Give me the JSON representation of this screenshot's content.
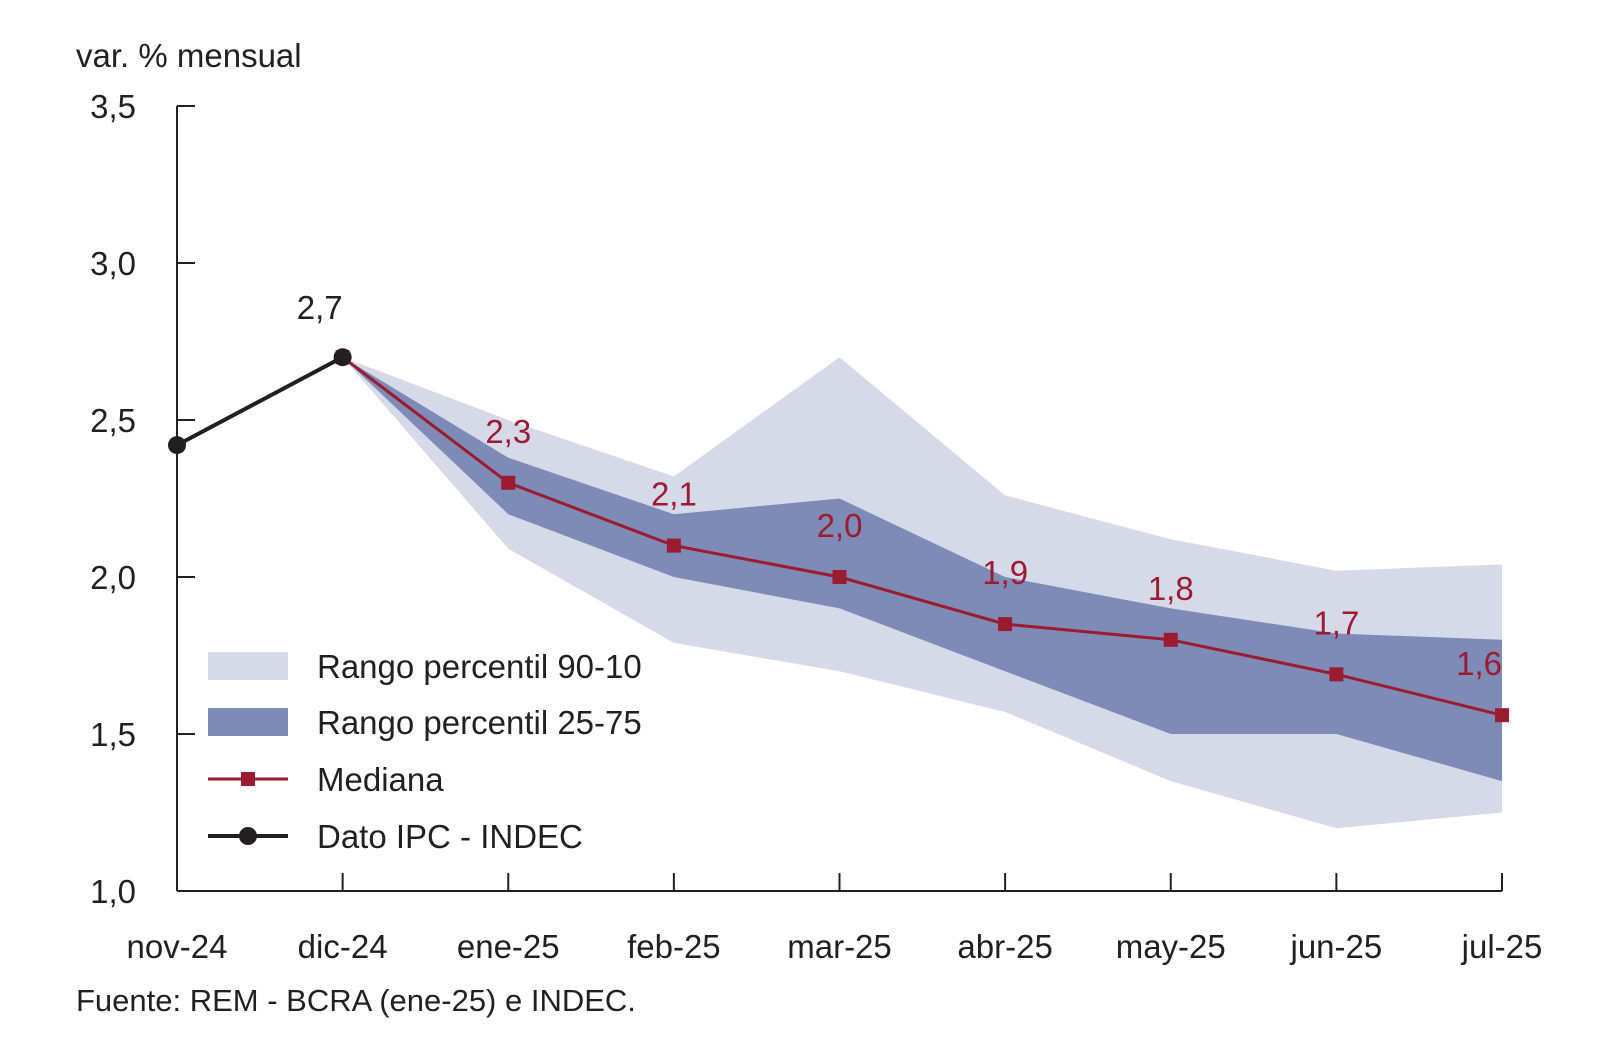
{
  "chart_data": {
    "type": "line",
    "ylabel": "var. % mensual",
    "source": "Fuente: REM - BCRA (ene-25) e INDEC.",
    "categories": [
      "nov-24",
      "dic-24",
      "ene-25",
      "feb-25",
      "mar-25",
      "abr-25",
      "may-25",
      "jun-25",
      "jul-25"
    ],
    "ylim": [
      1.0,
      3.5
    ],
    "yticks": [
      {
        "value": 1.0,
        "label": "1,0"
      },
      {
        "value": 1.5,
        "label": "1,5"
      },
      {
        "value": 2.0,
        "label": "2,0"
      },
      {
        "value": 2.5,
        "label": "2,5"
      },
      {
        "value": 3.0,
        "label": "3,0"
      },
      {
        "value": 3.5,
        "label": "3,5"
      }
    ],
    "grid": false,
    "legend_position": "bottom-left",
    "series": [
      {
        "name": "Rango percentil 90-10",
        "kind": "band",
        "color": "#d6d9e8",
        "x": [
          "dic-24",
          "ene-25",
          "feb-25",
          "mar-25",
          "abr-25",
          "may-25",
          "jun-25",
          "jul-25"
        ],
        "upper": [
          2.7,
          2.5,
          2.32,
          2.7,
          2.26,
          2.12,
          2.02,
          2.04
        ],
        "lower": [
          2.7,
          2.09,
          1.79,
          1.7,
          1.57,
          1.35,
          1.2,
          1.25
        ]
      },
      {
        "name": "Rango percentil 25-75",
        "kind": "band",
        "color": "#7d8bb6",
        "x": [
          "dic-24",
          "ene-25",
          "feb-25",
          "mar-25",
          "abr-25",
          "may-25",
          "jun-25",
          "jul-25"
        ],
        "upper": [
          2.7,
          2.38,
          2.2,
          2.25,
          2.0,
          1.9,
          1.82,
          1.8
        ],
        "lower": [
          2.7,
          2.2,
          2.0,
          1.9,
          1.7,
          1.5,
          1.5,
          1.35
        ]
      },
      {
        "name": "Mediana",
        "kind": "line",
        "marker": "square",
        "color": "#9b1b30",
        "x": [
          "dic-24",
          "ene-25",
          "feb-25",
          "mar-25",
          "abr-25",
          "may-25",
          "jun-25",
          "jul-25"
        ],
        "values": [
          2.7,
          2.3,
          2.1,
          2.0,
          1.85,
          1.8,
          1.69,
          1.56
        ],
        "data_labels": [
          null,
          "2,3",
          "2,1",
          "2,0",
          "1,9",
          "1,8",
          "1,7",
          "1,6"
        ]
      },
      {
        "name": "Dato IPC - INDEC",
        "kind": "line",
        "marker": "circle",
        "color": "#231f20",
        "x": [
          "nov-24",
          "dic-24"
        ],
        "values": [
          2.42,
          2.7
        ],
        "data_labels": [
          null,
          "2,7"
        ]
      }
    ],
    "legend": [
      {
        "label": "Rango percentil 90-10",
        "series": 0
      },
      {
        "label": "Rango percentil 25-75",
        "series": 1
      },
      {
        "label": "Mediana",
        "series": 2
      },
      {
        "label": "Dato IPC - INDEC",
        "series": 3
      }
    ]
  }
}
